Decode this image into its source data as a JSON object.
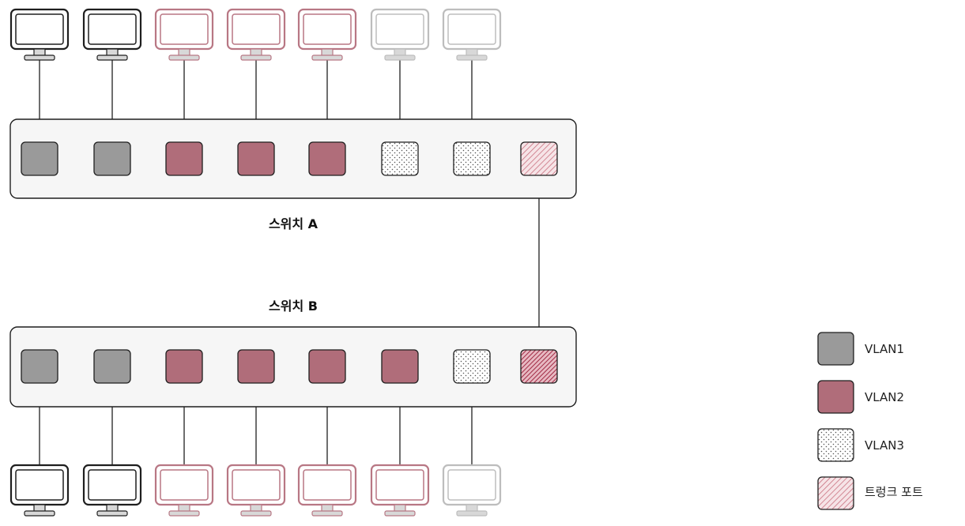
{
  "colors": {
    "vlan1": "#9a9a9a",
    "vlan2": "#b06d7a",
    "monitor_vlan1": "#1f1f1f",
    "monitor_vlan2": "#b87784",
    "monitor_vlan3": "#bdbdbd",
    "trunk_a": "#c9707f",
    "trunk_b": "#a12a44"
  },
  "switch_a": {
    "label": "스위치 A",
    "ports": [
      "vlan1",
      "vlan1",
      "vlan2",
      "vlan2",
      "vlan2",
      "vlan3",
      "vlan3",
      "trunk"
    ],
    "monitors": [
      "vlan1",
      "vlan1",
      "vlan2",
      "vlan2",
      "vlan2",
      "vlan3",
      "vlan3"
    ]
  },
  "switch_b": {
    "label": "스위치 B",
    "ports": [
      "vlan1",
      "vlan1",
      "vlan2",
      "vlan2",
      "vlan2",
      "vlan2",
      "vlan3",
      "trunk"
    ],
    "monitors": [
      "vlan1",
      "vlan1",
      "vlan2",
      "vlan2",
      "vlan2",
      "vlan2",
      "vlan3"
    ]
  },
  "legend": [
    {
      "key": "vlan1",
      "label": "VLAN1"
    },
    {
      "key": "vlan2",
      "label": "VLAN2"
    },
    {
      "key": "vlan3",
      "label": "VLAN3"
    },
    {
      "key": "trunk",
      "label": "트렁크 포트"
    }
  ]
}
